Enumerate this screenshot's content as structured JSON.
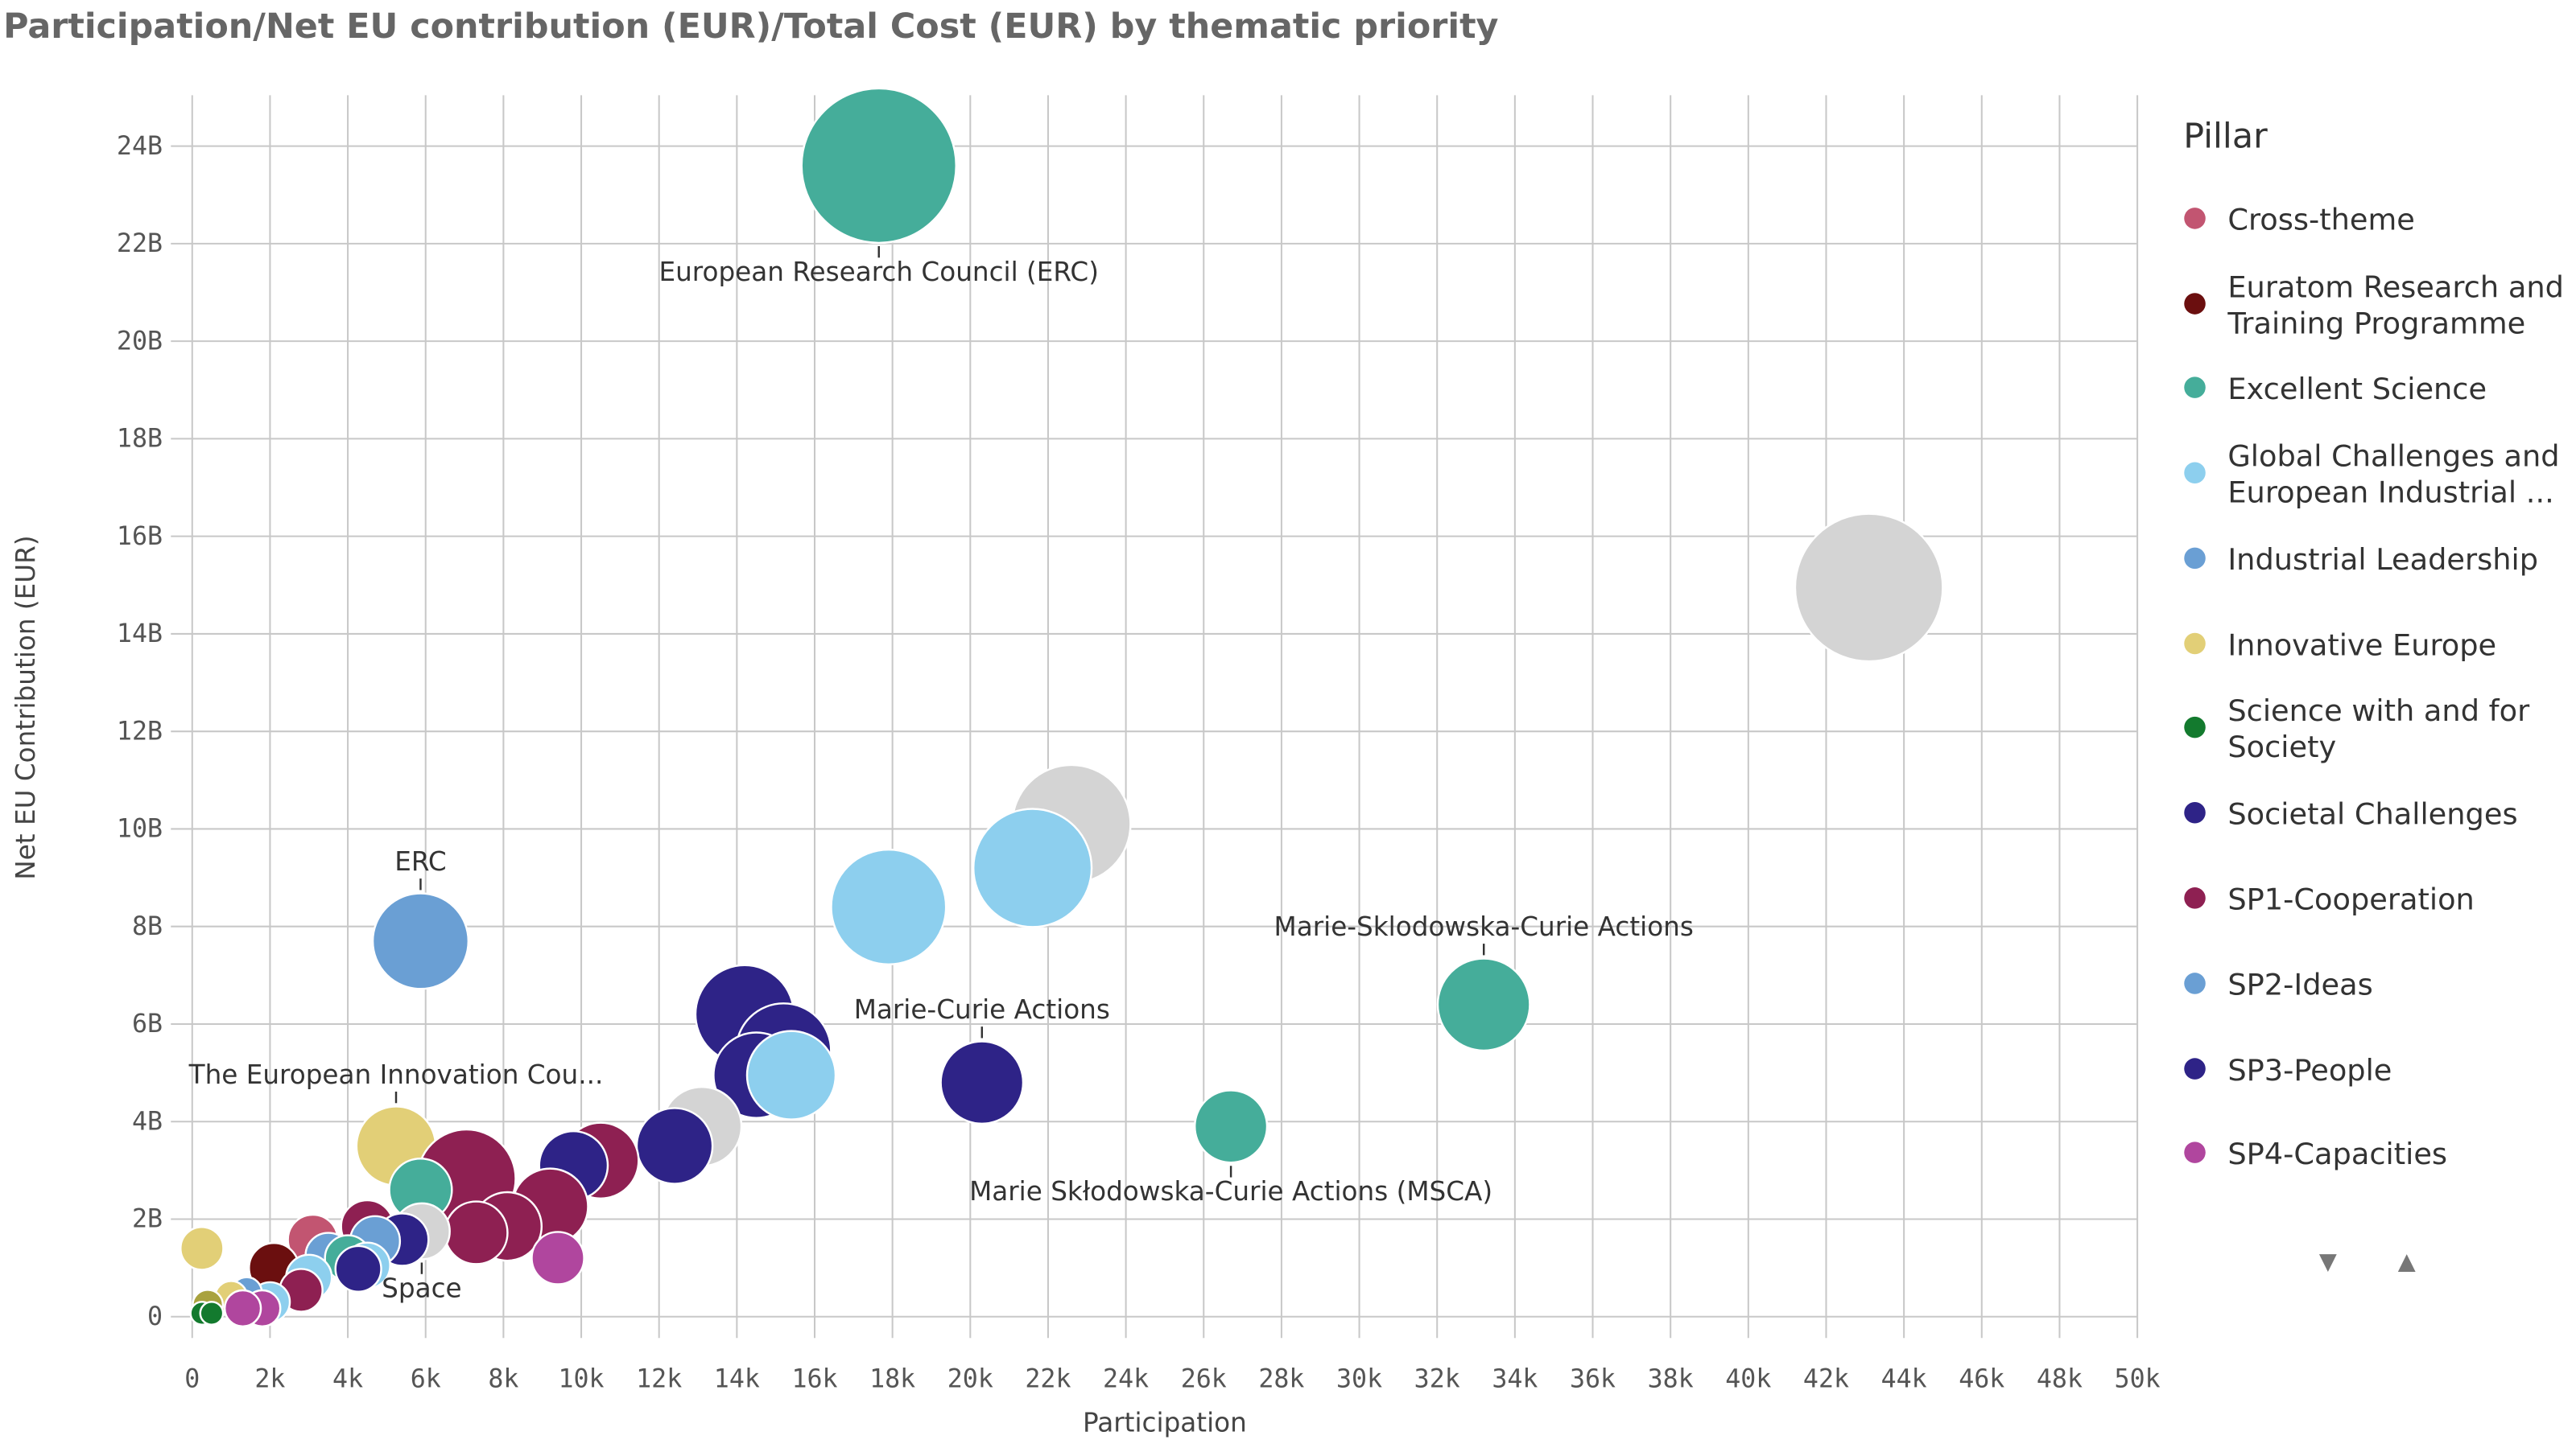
{
  "chart_data": {
    "type": "scatter",
    "subtype": "bubble",
    "title": "Participation/Net EU contribution (EUR)/Total Cost (EUR) by thematic priority",
    "xlabel": "Participation",
    "ylabel": "Net EU Contribution (EUR)",
    "size_measure": "Total Cost (EUR), billions (estimated)",
    "xlim": [
      0,
      50000
    ],
    "ylim": [
      0,
      24.5
    ],
    "x_ticks": [
      "0",
      "2k",
      "4k",
      "6k",
      "8k",
      "10k",
      "12k",
      "14k",
      "16k",
      "18k",
      "20k",
      "22k",
      "24k",
      "26k",
      "28k",
      "30k",
      "32k",
      "34k",
      "36k",
      "38k",
      "40k",
      "42k",
      "44k",
      "46k",
      "48k",
      "50k"
    ],
    "y_ticks": [
      "0",
      "2B",
      "4B",
      "6B",
      "8B",
      "10B",
      "12B",
      "14B",
      "16B",
      "18B",
      "20B",
      "22B",
      "24B"
    ],
    "grid": true,
    "legend": {
      "title": "Pillar",
      "position": "right",
      "items": [
        {
          "label": "Cross-theme",
          "color": "#c25571"
        },
        {
          "label": "Euratom Research and Training Programme",
          "lines": [
            "Euratom Research and",
            "Training Programme"
          ],
          "color": "#6b0f0f"
        },
        {
          "label": "Excellent Science",
          "color": "#45ad9a"
        },
        {
          "label": "Global Challenges and European Industrial ...",
          "lines": [
            "Global Challenges and",
            "European Industrial ..."
          ],
          "color": "#8dcfee"
        },
        {
          "label": "Industrial Leadership",
          "color": "#6a9fd4"
        },
        {
          "label": "Innovative Europe",
          "color": "#e2cf77"
        },
        {
          "label": "Science with and for Society",
          "lines": [
            "Science with and for",
            "Society"
          ],
          "color": "#137a2e"
        },
        {
          "label": "Societal Challenges",
          "color": "#2e2387"
        },
        {
          "label": "SP1-Cooperation",
          "color": "#8e2052"
        },
        {
          "label": "SP2-Ideas",
          "color": "#6a9fd4"
        },
        {
          "label": "SP3-People",
          "color": "#2e2387"
        },
        {
          "label": "SP4-Capacities",
          "color": "#b0469e"
        }
      ],
      "scroll_down": "▼",
      "scroll_up": "▲"
    },
    "other_color": "#d4d4d4",
    "points": [
      {
        "x": 43100,
        "y": 14.95,
        "size": 16.7,
        "pillar": "Other"
      },
      {
        "x": 17650,
        "y": 23.6,
        "size": 18.3,
        "pillar": "Excellent Science",
        "label": "European Research Council (ERC)",
        "label_side": "below"
      },
      {
        "x": 22600,
        "y": 10.1,
        "size": 10.7,
        "pillar": "Other"
      },
      {
        "x": 21600,
        "y": 9.2,
        "size": 10.7,
        "pillar": "Global Challenges and European Industrial ..."
      },
      {
        "x": 17900,
        "y": 8.4,
        "size": 10.1,
        "pillar": "Global Challenges and European Industrial ..."
      },
      {
        "x": 5870,
        "y": 7.7,
        "size": 7.0,
        "pillar": "SP2-Ideas",
        "label": "ERC",
        "label_side": "above"
      },
      {
        "x": 33200,
        "y": 6.4,
        "size": 6.5,
        "pillar": "Excellent Science",
        "label": "Marie-Sklodowska-Curie Actions",
        "label_side": "above"
      },
      {
        "x": 20300,
        "y": 4.8,
        "size": 5.2,
        "pillar": "SP3-People",
        "label": "Marie-Curie Actions",
        "label_side": "above"
      },
      {
        "x": 26700,
        "y": 3.9,
        "size": 4.0,
        "pillar": "Excellent Science",
        "label": "Marie Skłodowska-Curie Actions (MSCA)",
        "label_side": "below"
      },
      {
        "x": 14200,
        "y": 6.2,
        "size": 7.4,
        "pillar": "Societal Challenges"
      },
      {
        "x": 15200,
        "y": 5.45,
        "size": 6.9,
        "pillar": "Societal Challenges"
      },
      {
        "x": 14500,
        "y": 4.95,
        "size": 5.6,
        "pillar": "Societal Challenges"
      },
      {
        "x": 15400,
        "y": 4.95,
        "size": 6.0,
        "pillar": "Global Challenges and European Industrial ..."
      },
      {
        "x": 13100,
        "y": 3.9,
        "size": 4.8,
        "pillar": "Other"
      },
      {
        "x": 12400,
        "y": 3.5,
        "size": 4.4,
        "pillar": "Societal Challenges"
      },
      {
        "x": 10500,
        "y": 3.2,
        "size": 4.4,
        "pillar": "SP1-Cooperation"
      },
      {
        "x": 9800,
        "y": 3.1,
        "size": 3.6,
        "pillar": "SP3-People"
      },
      {
        "x": 5240,
        "y": 3.5,
        "size": 4.8,
        "pillar": "Innovative Europe",
        "label": "The European Innovation Cou...",
        "label_side": "above"
      },
      {
        "x": 7050,
        "y": 2.83,
        "size": 7.4,
        "pillar": "SP1-Cooperation"
      },
      {
        "x": 9200,
        "y": 2.26,
        "size": 4.4,
        "pillar": "SP1-Cooperation"
      },
      {
        "x": 8100,
        "y": 1.85,
        "size": 3.6,
        "pillar": "SP1-Cooperation"
      },
      {
        "x": 7300,
        "y": 1.72,
        "size": 3.0,
        "pillar": "SP1-Cooperation"
      },
      {
        "x": 5870,
        "y": 2.6,
        "size": 3.0,
        "pillar": "Excellent Science"
      },
      {
        "x": 4500,
        "y": 1.85,
        "size": 2.1,
        "pillar": "SP1-Cooperation"
      },
      {
        "x": 5900,
        "y": 1.75,
        "size": 2.4,
        "pillar": "Other",
        "label": "Space",
        "label_side": "below"
      },
      {
        "x": 5400,
        "y": 1.58,
        "size": 2.1,
        "pillar": "SP3-People"
      },
      {
        "x": 4700,
        "y": 1.55,
        "size": 1.9,
        "pillar": "Industrial Leadership"
      },
      {
        "x": 3100,
        "y": 1.58,
        "size": 1.9,
        "pillar": "Cross-theme"
      },
      {
        "x": 2100,
        "y": 1.0,
        "size": 1.9,
        "pillar": "Euratom Research and Training Programme"
      },
      {
        "x": 250,
        "y": 1.4,
        "size": 1.4,
        "pillar": "Innovative Europe"
      },
      {
        "x": 9400,
        "y": 1.2,
        "size": 2.1,
        "pillar": "SP4-Capacities"
      },
      {
        "x": 3500,
        "y": 1.25,
        "size": 1.6,
        "pillar": "Industrial Leadership"
      },
      {
        "x": 4000,
        "y": 1.2,
        "size": 1.6,
        "pillar": "Excellent Science"
      },
      {
        "x": 4500,
        "y": 1.05,
        "size": 1.6,
        "pillar": "Global Challenges and European Industrial ..."
      },
      {
        "x": 4270,
        "y": 0.98,
        "size": 1.6,
        "pillar": "Societal Challenges"
      },
      {
        "x": 3000,
        "y": 0.8,
        "size": 1.6,
        "pillar": "Global Challenges and European Industrial ..."
      },
      {
        "x": 2800,
        "y": 0.54,
        "size": 1.4,
        "pillar": "SP1-Cooperation"
      },
      {
        "x": 2000,
        "y": 0.3,
        "size": 1.2,
        "pillar": "Global Challenges and European Industrial ..."
      },
      {
        "x": 1400,
        "y": 0.5,
        "size": 0.7,
        "pillar": "SP2-Ideas"
      },
      {
        "x": 1000,
        "y": 0.4,
        "size": 0.8,
        "pillar": "Innovative Europe"
      },
      {
        "x": 1800,
        "y": 0.17,
        "size": 1.0,
        "pillar": "SP4-Capacities"
      },
      {
        "x": 1300,
        "y": 0.17,
        "size": 1.0,
        "pillar": "SP4-Capacities"
      },
      {
        "x": 400,
        "y": 0.24,
        "size": 0.7,
        "pillar": "Other-olive"
      },
      {
        "x": 250,
        "y": 0.07,
        "size": 0.4,
        "pillar": "Science with and for Society"
      },
      {
        "x": 500,
        "y": 0.07,
        "size": 0.4,
        "pillar": "Science with and for Society"
      }
    ]
  }
}
